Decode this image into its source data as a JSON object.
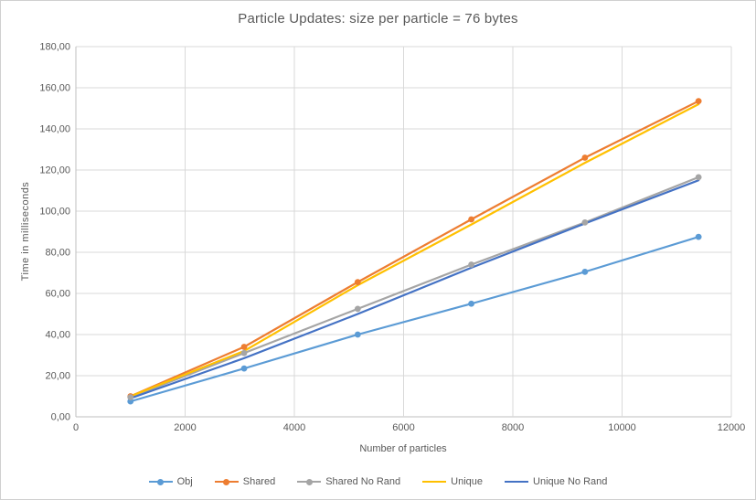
{
  "title": "Particle Updates: size per particle = 76 bytes",
  "chart_data": {
    "type": "line",
    "title": "Particle Updates: size per particle = 76 bytes",
    "xlabel": "Number of particles",
    "ylabel": "Time in milliseconds",
    "xlim": [
      0,
      12000
    ],
    "ylim": [
      0,
      180
    ],
    "grid": true,
    "legend_position": "bottom",
    "x_ticks": [
      0,
      2000,
      4000,
      6000,
      8000,
      10000,
      12000
    ],
    "x_tick_labels": [
      "0",
      "2000",
      "4000",
      "6000",
      "8000",
      "10000",
      "12000"
    ],
    "y_ticks": [
      0,
      20,
      40,
      60,
      80,
      100,
      120,
      140,
      160,
      180
    ],
    "y_tick_labels": [
      "0,00",
      "20,00",
      "40,00",
      "60,00",
      "80,00",
      "100,00",
      "120,00",
      "140,00",
      "160,00",
      "180,00"
    ],
    "x": [
      1000,
      3080,
      5160,
      7240,
      9320,
      11400
    ],
    "series": [
      {
        "name": "Obj",
        "color": "#5B9BD5",
        "marker": true,
        "values": [
          7.5,
          23.5,
          40.0,
          55.0,
          70.5,
          87.5
        ]
      },
      {
        "name": "Shared",
        "color": "#ED7D31",
        "marker": true,
        "values": [
          10.0,
          34.0,
          65.5,
          96.0,
          126.0,
          153.5
        ]
      },
      {
        "name": "Shared No Rand",
        "color": "#A5A5A5",
        "marker": true,
        "values": [
          9.5,
          31.0,
          52.5,
          74.0,
          94.5,
          116.5
        ]
      },
      {
        "name": "Unique",
        "color": "#FFC000",
        "marker": false,
        "values": [
          10.0,
          32.0,
          64.0,
          93.5,
          123.5,
          152.0
        ]
      },
      {
        "name": "Unique No Rand",
        "color": "#4472C4",
        "marker": false,
        "values": [
          9.0,
          28.5,
          50.0,
          72.5,
          94.0,
          115.0
        ]
      }
    ],
    "colors": {
      "grid": "#D9D9D9",
      "axis": "#BFBFBF",
      "text": "#595959",
      "background": "#FFFFFF"
    }
  }
}
